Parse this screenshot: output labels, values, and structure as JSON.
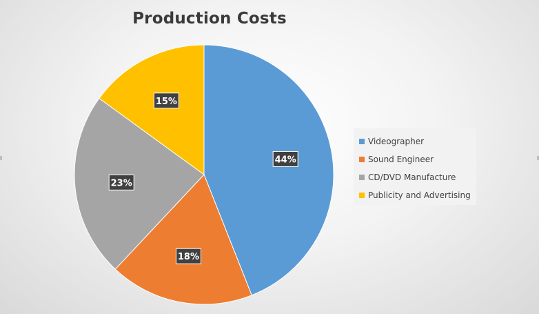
{
  "chart_data": {
    "type": "pie",
    "title": "Production Costs",
    "categories": [
      "Videographer",
      "Sound Engineer",
      "CD/DVD Manufacture",
      "Publicity and Advertising"
    ],
    "values": [
      44,
      18,
      23,
      15
    ],
    "labels": [
      "44%",
      "18%",
      "23%",
      "15%"
    ],
    "colors": [
      "#5b9bd5",
      "#ed7d31",
      "#a5a5a5",
      "#ffc000"
    ],
    "start_angle_deg": 0,
    "direction": "clockwise",
    "legend_position": "right"
  }
}
